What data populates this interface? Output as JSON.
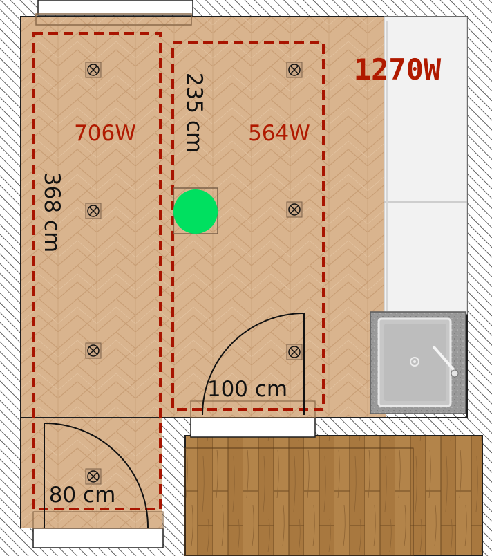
{
  "total_power": "1270W",
  "zones": [
    {
      "power": "706W",
      "length": "368 cm"
    },
    {
      "power": "564W",
      "length": "235 cm"
    }
  ],
  "doors": [
    {
      "width": "100 cm"
    },
    {
      "width": "80 cm"
    }
  ],
  "colors": {
    "wall_hatch": "#3a3a3a",
    "floor_herringbone": "#d9b48e",
    "floor_planks": "#a8783f",
    "zone_outline": "#a81400",
    "power_text": "#b01a00",
    "thermostat": "#00e060",
    "cabinet": "#f2f2f2",
    "sink_top": "#9a9a9a"
  },
  "icons": [
    "ceiling-light-icon",
    "thermostat-icon",
    "sink-icon",
    "faucet-icon"
  ]
}
